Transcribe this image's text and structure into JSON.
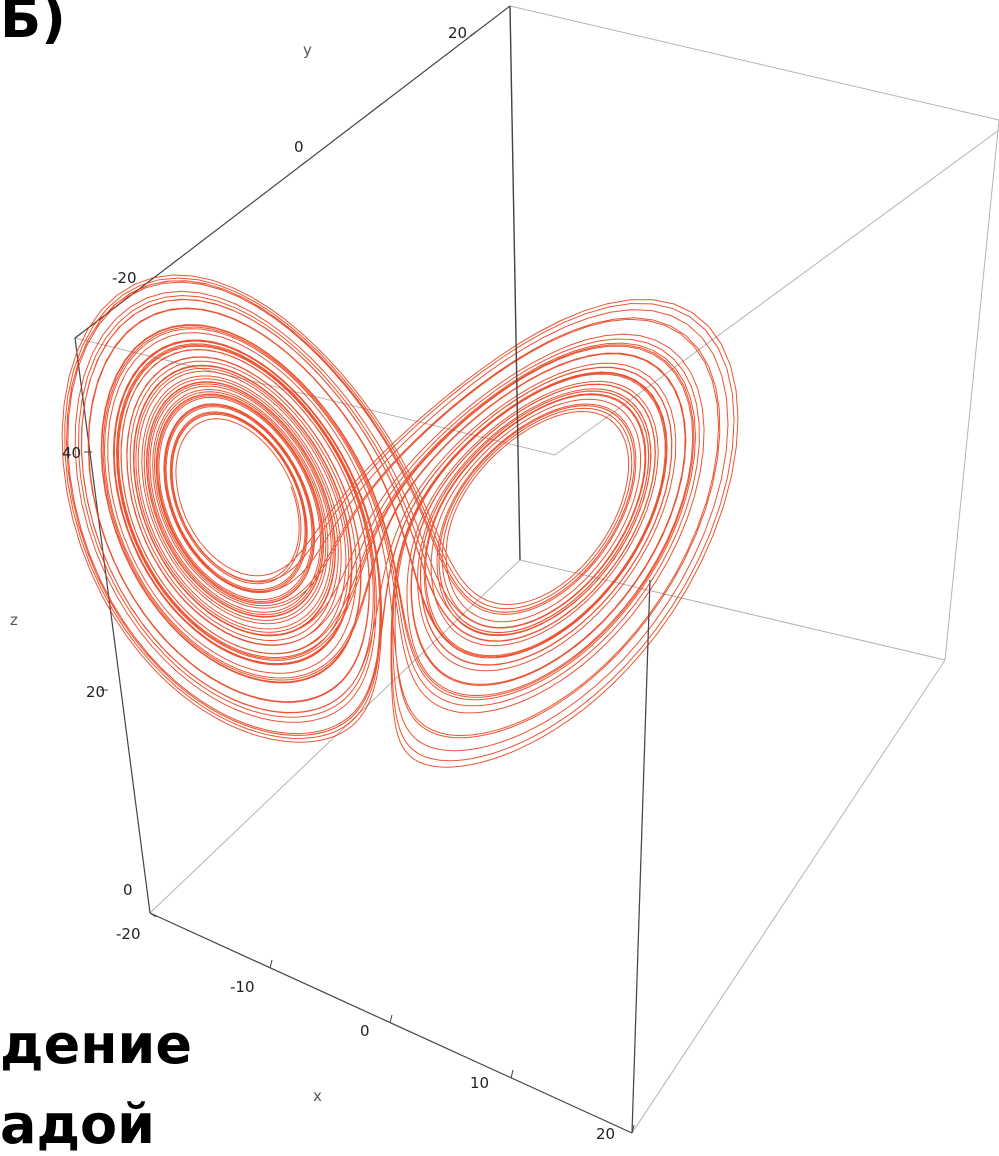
{
  "slide": {
    "label_fragment": "Б)",
    "caption_line_1": "дение",
    "caption_line_2": "адой"
  },
  "chart_data": {
    "type": "line",
    "projection": "3d",
    "title": "",
    "axes": {
      "x": {
        "label": "x",
        "range": [
          -20,
          20
        ],
        "ticks": [
          "-20",
          "-10",
          "0",
          "10",
          "20"
        ]
      },
      "y": {
        "label": "y",
        "range": [
          -25,
          25
        ],
        "ticks": [
          "-20",
          "0",
          "20"
        ]
      },
      "z": {
        "label": "z",
        "range": [
          0,
          50
        ],
        "ticks": [
          "0",
          "20",
          "40"
        ]
      }
    },
    "grid": false,
    "box": true,
    "series": [
      {
        "color": "#e8360f",
        "shape": "two-lobed butterfly trajectory",
        "points": [
          {
            "x": -8.0,
            "y": -8.0,
            "z": 27.0
          },
          {
            "x": -15.5,
            "y": -10.0,
            "z": 40.0
          },
          {
            "x": -5.0,
            "y": 2.0,
            "z": 15.0
          },
          {
            "x": 8.0,
            "y": 8.0,
            "z": 27.0
          },
          {
            "x": 15.5,
            "y": 10.0,
            "z": 40.0
          },
          {
            "x": 5.0,
            "y": -2.0,
            "z": 15.0
          }
        ]
      }
    ],
    "colors": {
      "trajectory": "#e8360f",
      "box": "#b4b4b4",
      "front_edge": "#444444"
    }
  }
}
